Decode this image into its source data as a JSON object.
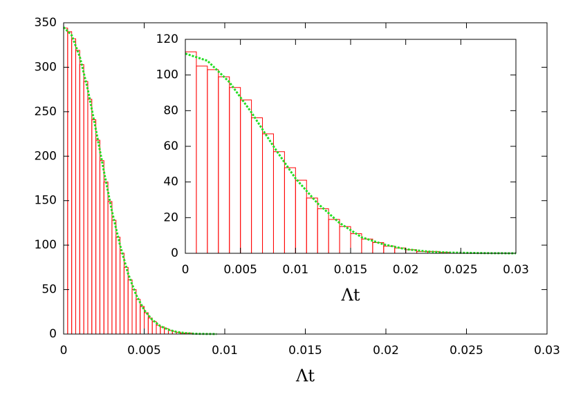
{
  "chart_data": [
    {
      "type": "histogram",
      "bins": [
        0,
        0.00025,
        0.0005,
        0.00075,
        0.001,
        0.00125,
        0.0015,
        0.00175,
        0.002,
        0.00225,
        0.0025,
        0.00275,
        0.003,
        0.00325,
        0.0035,
        0.00375,
        0.004,
        0.00425,
        0.0045,
        0.00475,
        0.005,
        0.00525,
        0.0055,
        0.00575,
        0.006,
        0.00625,
        0.0065,
        0.00675,
        0.007,
        0.00725,
        0.0075,
        0.00775,
        0.008,
        0.00825,
        0.0085,
        0.00875,
        0.009,
        0.00925,
        0.0095
      ],
      "counts": [
        344,
        340,
        332,
        319,
        303,
        284,
        264,
        241,
        218,
        195,
        171,
        149,
        128,
        109,
        91,
        75,
        61,
        50,
        39,
        31,
        24,
        18,
        14,
        10,
        8,
        6,
        4,
        3,
        2,
        1,
        1,
        1,
        0,
        0,
        0,
        0,
        0,
        0
      ],
      "color": "#ff0000",
      "fit": {
        "x": [
          0,
          0.0005,
          0.001,
          0.0015,
          0.002,
          0.0025,
          0.003,
          0.0035,
          0.004,
          0.0045,
          0.005,
          0.0055,
          0.006,
          0.0065,
          0.007,
          0.0075,
          0.008,
          0.0085,
          0.009,
          0.0095
        ],
        "values": [
          345,
          336,
          312,
          275,
          230,
          183,
          138,
          100,
          68,
          44,
          27,
          16,
          9,
          5,
          2.4,
          1.2,
          0.5,
          0.2,
          0.1,
          0
        ],
        "color": "#22dd22"
      },
      "xlim": [
        0,
        0.03
      ],
      "ylim": [
        0,
        350
      ],
      "xticks": [
        0,
        0.005,
        0.01,
        0.015,
        0.02,
        0.025,
        0.03
      ],
      "yticks": [
        0,
        50,
        100,
        150,
        200,
        250,
        300,
        350
      ],
      "xlabel": "Λt"
    },
    {
      "type": "histogram",
      "bins": [
        0,
        0.001,
        0.002,
        0.003,
        0.004,
        0.005,
        0.006,
        0.007,
        0.008,
        0.009,
        0.01,
        0.011,
        0.012,
        0.013,
        0.014,
        0.015,
        0.016,
        0.017,
        0.018,
        0.019,
        0.02,
        0.021,
        0.022,
        0.023,
        0.024,
        0.025,
        0.026,
        0.027,
        0.028,
        0.029,
        0.03
      ],
      "counts": [
        113,
        105,
        103,
        99,
        93,
        86,
        76,
        67,
        57,
        48,
        41,
        31,
        25,
        19,
        15,
        11,
        8,
        6,
        4,
        3,
        2,
        1,
        1,
        0.5,
        0,
        0,
        0,
        0,
        0,
        0
      ],
      "color": "#ff0000",
      "fit": {
        "x": [
          0,
          0.002,
          0.004,
          0.006,
          0.008,
          0.01,
          0.012,
          0.014,
          0.016,
          0.018,
          0.02,
          0.022,
          0.024,
          0.026,
          0.028,
          0.03
        ],
        "values": [
          112,
          108,
          96,
          79,
          60,
          42,
          28,
          17,
          9,
          5,
          2.3,
          1,
          0.4,
          0.2,
          0.05,
          0
        ],
        "color": "#22dd22"
      },
      "xlim": [
        0,
        0.03
      ],
      "ylim": [
        0,
        120
      ],
      "xticks": [
        0,
        0.005,
        0.01,
        0.015,
        0.02,
        0.025,
        0.03
      ],
      "yticks": [
        0,
        20,
        40,
        60,
        80,
        100,
        120
      ],
      "xlabel": "Λt"
    }
  ]
}
